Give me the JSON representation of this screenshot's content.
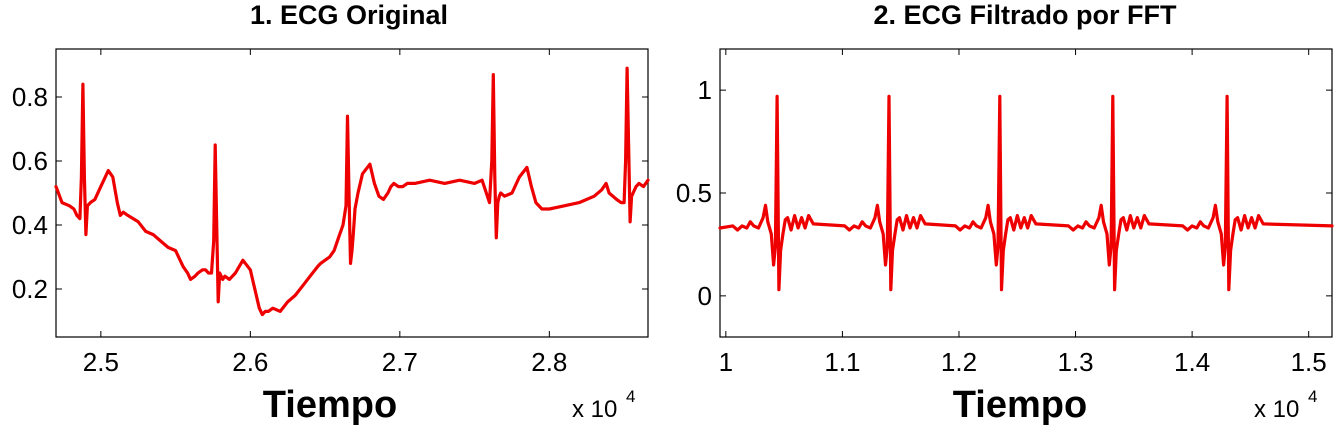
{
  "chart_data": [
    {
      "type": "line",
      "title": "1. ECG Original",
      "xlabel": "Tiempo",
      "ylabel": "",
      "x_multiplier": "x 10",
      "x_multiplier_exp": "4",
      "xlim": [
        24700,
        28660
      ],
      "ylim": [
        0.05,
        0.95
      ],
      "xticks": [
        25000,
        26000,
        27000,
        28000
      ],
      "xtick_labels": [
        "2.5",
        "2.6",
        "2.7",
        "2.8"
      ],
      "yticks": [
        0.2,
        0.4,
        0.6,
        0.8
      ],
      "ytick_labels": [
        "0.2",
        "0.4",
        "0.6",
        "0.8"
      ],
      "grid": false,
      "line_color": "#ee0000",
      "series": [
        {
          "x": [
            24700,
            24740,
            24790,
            24820,
            24840,
            24860,
            24870,
            24880,
            24890,
            24900,
            24910,
            24930,
            24960,
            25000,
            25050,
            25080,
            25110,
            25130,
            25150,
            25180,
            25250,
            25300,
            25350,
            25400,
            25450,
            25500,
            25520,
            25550,
            25580,
            25600,
            25630,
            25650,
            25680,
            25700,
            25720,
            25740,
            25755,
            25765,
            25775,
            25785,
            25795,
            25805,
            25815,
            25830,
            25860,
            25900,
            25950,
            26000,
            26030,
            26060,
            26080,
            26100,
            26120,
            26150,
            26200,
            26250,
            26300,
            26350,
            26400,
            26450,
            26470,
            26500,
            26530,
            26560,
            26590,
            26620,
            26640,
            26650,
            26660,
            26670,
            26680,
            26690,
            26700,
            26720,
            26750,
            26800,
            26830,
            26860,
            26890,
            26920,
            26940,
            26960,
            26990,
            27020,
            27050,
            27100,
            27200,
            27300,
            27400,
            27500,
            27550,
            27600,
            27615,
            27625,
            27635,
            27645,
            27655,
            27665,
            27675,
            27700,
            27750,
            27800,
            27850,
            27880,
            27910,
            27950,
            28000,
            28100,
            28200,
            28300,
            28350,
            28380,
            28400,
            28450,
            28480,
            28500,
            28510,
            28520,
            28530,
            28540,
            28550,
            28560,
            28580,
            28600,
            28630,
            28660
          ],
          "y": [
            0.52,
            0.47,
            0.46,
            0.45,
            0.43,
            0.42,
            0.55,
            0.84,
            0.55,
            0.37,
            0.46,
            0.47,
            0.48,
            0.52,
            0.57,
            0.55,
            0.47,
            0.43,
            0.44,
            0.43,
            0.41,
            0.38,
            0.37,
            0.35,
            0.33,
            0.32,
            0.3,
            0.27,
            0.25,
            0.23,
            0.24,
            0.25,
            0.26,
            0.26,
            0.25,
            0.25,
            0.35,
            0.65,
            0.4,
            0.16,
            0.25,
            0.24,
            0.23,
            0.24,
            0.23,
            0.25,
            0.29,
            0.26,
            0.2,
            0.14,
            0.12,
            0.13,
            0.13,
            0.14,
            0.13,
            0.16,
            0.18,
            0.21,
            0.24,
            0.27,
            0.28,
            0.29,
            0.3,
            0.32,
            0.36,
            0.4,
            0.46,
            0.74,
            0.5,
            0.28,
            0.32,
            0.38,
            0.45,
            0.5,
            0.56,
            0.59,
            0.53,
            0.49,
            0.48,
            0.5,
            0.52,
            0.53,
            0.52,
            0.52,
            0.53,
            0.53,
            0.54,
            0.53,
            0.54,
            0.53,
            0.54,
            0.47,
            0.6,
            0.87,
            0.55,
            0.36,
            0.47,
            0.49,
            0.5,
            0.49,
            0.5,
            0.55,
            0.58,
            0.52,
            0.47,
            0.45,
            0.45,
            0.46,
            0.47,
            0.49,
            0.51,
            0.53,
            0.5,
            0.48,
            0.47,
            0.47,
            0.6,
            0.89,
            0.65,
            0.41,
            0.49,
            0.5,
            0.52,
            0.53,
            0.52,
            0.54
          ]
        }
      ]
    },
    {
      "type": "line",
      "title": "2.  ECG Filtrado por FFT",
      "xlabel": "Tiempo",
      "ylabel": "",
      "x_multiplier": "x 10",
      "x_multiplier_exp": "4",
      "xlim": [
        9950,
        15200
      ],
      "ylim": [
        -0.2,
        1.2
      ],
      "xticks": [
        10000,
        11000,
        12000,
        13000,
        14000,
        15000
      ],
      "xtick_labels": [
        "1",
        "1.1",
        "1.2",
        "1.3",
        "1.4",
        "1.5"
      ],
      "yticks": [
        0,
        0.5,
        1
      ],
      "ytick_labels": [
        "0",
        "0.5",
        "1"
      ],
      "grid": false,
      "line_color": "#ee0000",
      "beats_x": [
        10440,
        11400,
        12350,
        13320,
        14300
      ],
      "beat_template": {
        "offsets": [
          -380,
          -340,
          -300,
          -260,
          -230,
          -200,
          -160,
          -120,
          -100,
          -80,
          -50,
          -30,
          -15,
          0,
          15,
          30,
          50,
          70,
          90,
          120,
          150,
          180,
          210,
          240,
          270,
          310
        ],
        "values": [
          0.34,
          0.32,
          0.34,
          0.33,
          0.36,
          0.34,
          0.33,
          0.38,
          0.44,
          0.36,
          0.3,
          0.15,
          0.24,
          0.97,
          0.03,
          0.22,
          0.3,
          0.37,
          0.38,
          0.32,
          0.39,
          0.33,
          0.38,
          0.33,
          0.39,
          0.35
        ]
      }
    }
  ]
}
